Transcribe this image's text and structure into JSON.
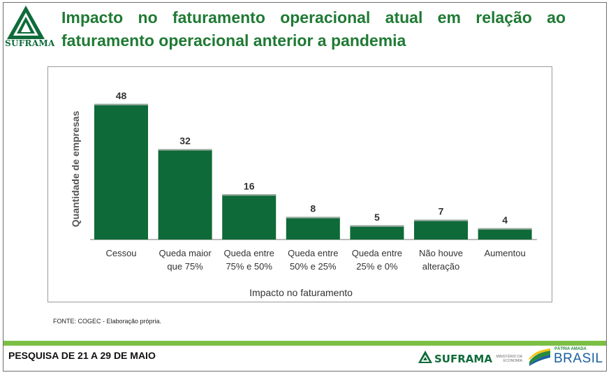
{
  "header": {
    "logo_text": "SUFRAMA",
    "title": "Impacto no faturamento operacional atual em relação ao faturamento operacional anterior a pandemia"
  },
  "chart_data": {
    "type": "bar",
    "categories": [
      [
        "Cessou"
      ],
      [
        "Queda maior",
        "que 75%"
      ],
      [
        "Queda entre",
        "75% e 50%"
      ],
      [
        "Queda entre",
        "50% e 25%"
      ],
      [
        "Queda entre",
        "25% e 0%"
      ],
      [
        "Não houve",
        "alteração"
      ],
      [
        "Aumentou"
      ]
    ],
    "values": [
      48,
      32,
      16,
      8,
      5,
      7,
      4
    ],
    "value_labels": [
      "48",
      "32",
      "16",
      "8",
      "5",
      "7",
      "4"
    ],
    "xlabel": "Impacto no faturamento",
    "ylabel": "Quantidade de empresas",
    "ylim": [
      0,
      50
    ],
    "grid": false,
    "bar_color": "#0e6a38"
  },
  "source": "FONTE: COGEC - Elaboração própria.",
  "footer": {
    "survey_text": "PESQUISA DE 21 A 29 DE MAIO",
    "brand": "SUFRAMA",
    "ministry": "MINISTÉRIO DA ECONOMIA",
    "patria": "PÁTRIA AMADA",
    "brasil": "BRASIL",
    "accent_color": "#7cbf45"
  }
}
